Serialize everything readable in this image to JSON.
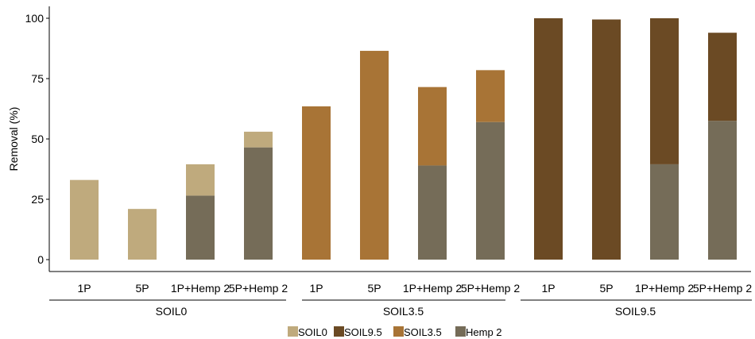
{
  "chart_data": {
    "type": "bar",
    "stacked": true,
    "ylabel": "Removal (%)",
    "ylim": [
      0,
      100
    ],
    "yticks": [
      0,
      25,
      50,
      75,
      100
    ],
    "grid": false,
    "groups": [
      {
        "name": "SOIL0",
        "categories": [
          "1P",
          "5P",
          "1P+Hemp 2",
          "5P+Hemp 2"
        ]
      },
      {
        "name": "SOIL3.5",
        "categories": [
          "1P",
          "5P",
          "1P+Hemp 2",
          "5P+Hemp 2"
        ]
      },
      {
        "name": "SOIL9.5",
        "categories": [
          "1P",
          "5P",
          "1P+Hemp 2",
          "5P+Hemp 2"
        ]
      }
    ],
    "bars": [
      {
        "group": "SOIL0",
        "category": "1P",
        "soil": "SOIL0",
        "hemp": 0,
        "total": 33
      },
      {
        "group": "SOIL0",
        "category": "5P",
        "soil": "SOIL0",
        "hemp": 0,
        "total": 21
      },
      {
        "group": "SOIL0",
        "category": "1P+Hemp 2",
        "soil": "SOIL0",
        "hemp": 26.5,
        "total": 39.5
      },
      {
        "group": "SOIL0",
        "category": "5P+Hemp 2",
        "soil": "SOIL0",
        "hemp": 46.5,
        "total": 53
      },
      {
        "group": "SOIL3.5",
        "category": "1P",
        "soil": "SOIL3.5",
        "hemp": 0,
        "total": 63.5
      },
      {
        "group": "SOIL3.5",
        "category": "5P",
        "soil": "SOIL3.5",
        "hemp": 0,
        "total": 86.5
      },
      {
        "group": "SOIL3.5",
        "category": "1P+Hemp 2",
        "soil": "SOIL3.5",
        "hemp": 39,
        "total": 71.5
      },
      {
        "group": "SOIL3.5",
        "category": "5P+Hemp 2",
        "soil": "SOIL3.5",
        "hemp": 57,
        "total": 78.5
      },
      {
        "group": "SOIL9.5",
        "category": "1P",
        "soil": "SOIL9.5",
        "hemp": 0,
        "total": 100
      },
      {
        "group": "SOIL9.5",
        "category": "5P",
        "soil": "SOIL9.5",
        "hemp": 0,
        "total": 99.5
      },
      {
        "group": "SOIL9.5",
        "category": "1P+Hemp 2",
        "soil": "SOIL9.5",
        "hemp": 39.5,
        "total": 100
      },
      {
        "group": "SOIL9.5",
        "category": "5P+Hemp 2",
        "soil": "SOIL9.5",
        "hemp": 57.5,
        "total": 94
      }
    ],
    "series": [
      {
        "name": "SOIL0",
        "color": "#BFAA7D"
      },
      {
        "name": "SOIL9.5",
        "color": "#6B4A24"
      },
      {
        "name": "SOIL3.5",
        "color": "#A87436"
      },
      {
        "name": "Hemp 2",
        "color": "#756C58"
      }
    ],
    "legend_position": "bottom"
  }
}
